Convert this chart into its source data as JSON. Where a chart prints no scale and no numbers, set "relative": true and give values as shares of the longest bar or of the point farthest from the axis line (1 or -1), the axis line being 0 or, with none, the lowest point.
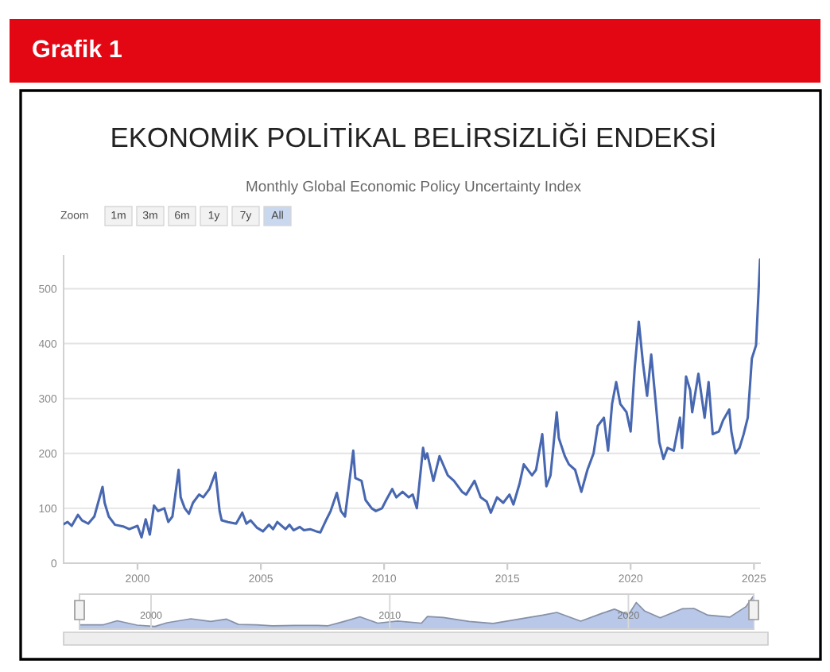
{
  "chart_data": [
    {
      "type": "line",
      "title": "EKONOMİK POLİTİKAL BELİRSİZLİĞİ ENDEKSİ",
      "subtitle": "Monthly Global Economic Policy Uncertainty Index",
      "annotations": [
        "Grafik 1",
        "Zoom",
        "1m",
        "3m",
        "6m",
        "1y",
        "7y",
        "All"
      ],
      "x": [
        "1997-01",
        "1997-03",
        "1997-05",
        "1997-08",
        "1997-10",
        "1998-01",
        "1998-04",
        "1998-08",
        "1998-09",
        "1998-11",
        "1999-02",
        "1999-06",
        "1999-09",
        "2000-01",
        "2000-03",
        "2000-05",
        "2000-07",
        "2000-09",
        "2000-11",
        "2001-02",
        "2001-04",
        "2001-06",
        "2001-09",
        "2001-10",
        "2001-12",
        "2002-02",
        "2002-04",
        "2002-07",
        "2002-09",
        "2002-12",
        "2003-03",
        "2003-05",
        "2003-06",
        "2003-09",
        "2004-01",
        "2004-04",
        "2004-06",
        "2004-08",
        "2004-11",
        "2005-02",
        "2005-05",
        "2005-07",
        "2005-09",
        "2006-01",
        "2006-03",
        "2006-05",
        "2006-08",
        "2006-10",
        "2007-01",
        "2007-04",
        "2007-06",
        "2007-09",
        "2007-11",
        "2008-02",
        "2008-04",
        "2008-06",
        "2008-10",
        "2008-11",
        "2009-02",
        "2009-04",
        "2009-07",
        "2009-09",
        "2009-12",
        "2010-02",
        "2010-05",
        "2010-07",
        "2010-10",
        "2011-01",
        "2011-03",
        "2011-05",
        "2011-08",
        "2011-09",
        "2011-10",
        "2012-01",
        "2012-04",
        "2012-08",
        "2012-11",
        "2013-03",
        "2013-05",
        "2013-09",
        "2013-12",
        "2014-03",
        "2014-05",
        "2014-08",
        "2014-11",
        "2015-02",
        "2015-04",
        "2015-07",
        "2015-09",
        "2016-01",
        "2016-03",
        "2016-06",
        "2016-08",
        "2016-10",
        "2017-01",
        "2017-02",
        "2017-05",
        "2017-07",
        "2017-10",
        "2018-01",
        "2018-04",
        "2018-07",
        "2018-09",
        "2018-12",
        "2019-02",
        "2019-04",
        "2019-06",
        "2019-08",
        "2019-11",
        "2020-01",
        "2020-03",
        "2020-05",
        "2020-07",
        "2020-09",
        "2020-11",
        "2021-01",
        "2021-03",
        "2021-05",
        "2021-07",
        "2021-10",
        "2022-01",
        "2022-02",
        "2022-04",
        "2022-06",
        "2022-07",
        "2022-10",
        "2023-01",
        "2023-03",
        "2023-05",
        "2023-08",
        "2023-10",
        "2024-01",
        "2024-02",
        "2024-04",
        "2024-06",
        "2024-08",
        "2024-10",
        "2024-12",
        "2025-02",
        "2025-04"
      ],
      "series": [
        {
          "color": "#4767b0",
          "values": [
            71,
            75,
            68,
            88,
            78,
            72,
            85,
            139,
            110,
            85,
            70,
            67,
            62,
            68,
            47,
            80,
            52,
            105,
            95,
            100,
            75,
            85,
            170,
            120,
            100,
            90,
            110,
            125,
            120,
            135,
            165,
            95,
            78,
            75,
            72,
            92,
            72,
            78,
            65,
            58,
            70,
            62,
            75,
            62,
            70,
            60,
            66,
            60,
            62,
            58,
            56,
            80,
            95,
            128,
            95,
            85,
            205,
            155,
            150,
            115,
            100,
            95,
            100,
            115,
            135,
            120,
            130,
            120,
            125,
            100,
            210,
            190,
            200,
            150,
            195,
            160,
            150,
            130,
            125,
            150,
            120,
            112,
            92,
            120,
            110,
            125,
            107,
            145,
            180,
            160,
            170,
            235,
            140,
            160,
            275,
            228,
            195,
            180,
            170,
            130,
            170,
            200,
            250,
            265,
            205,
            290,
            330,
            290,
            275,
            240,
            355,
            440,
            365,
            305,
            380,
            300,
            220,
            190,
            210,
            205,
            265,
            210,
            340,
            315,
            275,
            345,
            265,
            330,
            235,
            240,
            260,
            280,
            240,
            200,
            210,
            235,
            265,
            373,
            397,
            553
          ]
        }
      ],
      "xlim": [
        "1997-01",
        "2025-04"
      ],
      "xticks": [
        "2000",
        "2005",
        "2010",
        "2015",
        "2020",
        "2025"
      ],
      "ylim": [
        0,
        560
      ],
      "yticks": [
        0,
        100,
        200,
        300,
        400,
        500
      ],
      "grid": "y"
    },
    {
      "type": "area",
      "relative": true,
      "x": [
        "1997-01",
        "1998-01",
        "1998-08",
        "1999-06",
        "2000-03",
        "2000-09",
        "2001-09",
        "2002-07",
        "2003-03",
        "2003-09",
        "2004-06",
        "2005-02",
        "2006-01",
        "2007-01",
        "2007-06",
        "2008-02",
        "2008-10",
        "2009-07",
        "2010-05",
        "2011-05",
        "2011-08",
        "2012-04",
        "2013-05",
        "2014-05",
        "2015-09",
        "2016-06",
        "2017-01",
        "2018-01",
        "2018-12",
        "2019-06",
        "2020-01",
        "2020-05",
        "2020-09",
        "2021-05",
        "2022-04",
        "2022-10",
        "2023-05",
        "2024-04",
        "2024-12",
        "2025-04"
      ],
      "series": [
        {
          "color": "#b9c8e8",
          "values": [
            0.13,
            0.13,
            0.25,
            0.12,
            0.08,
            0.19,
            0.31,
            0.23,
            0.3,
            0.14,
            0.13,
            0.1,
            0.11,
            0.11,
            0.1,
            0.23,
            0.37,
            0.18,
            0.24,
            0.18,
            0.38,
            0.35,
            0.23,
            0.17,
            0.33,
            0.42,
            0.5,
            0.24,
            0.48,
            0.6,
            0.43,
            0.8,
            0.55,
            0.34,
            0.61,
            0.62,
            0.42,
            0.36,
            0.67,
            1.0
          ]
        }
      ],
      "xlim": [
        "1997-01",
        "2025-04"
      ],
      "xticks": [
        "2000",
        "2010",
        "2020"
      ],
      "tick_labels": "x",
      "grid": "x"
    }
  ]
}
